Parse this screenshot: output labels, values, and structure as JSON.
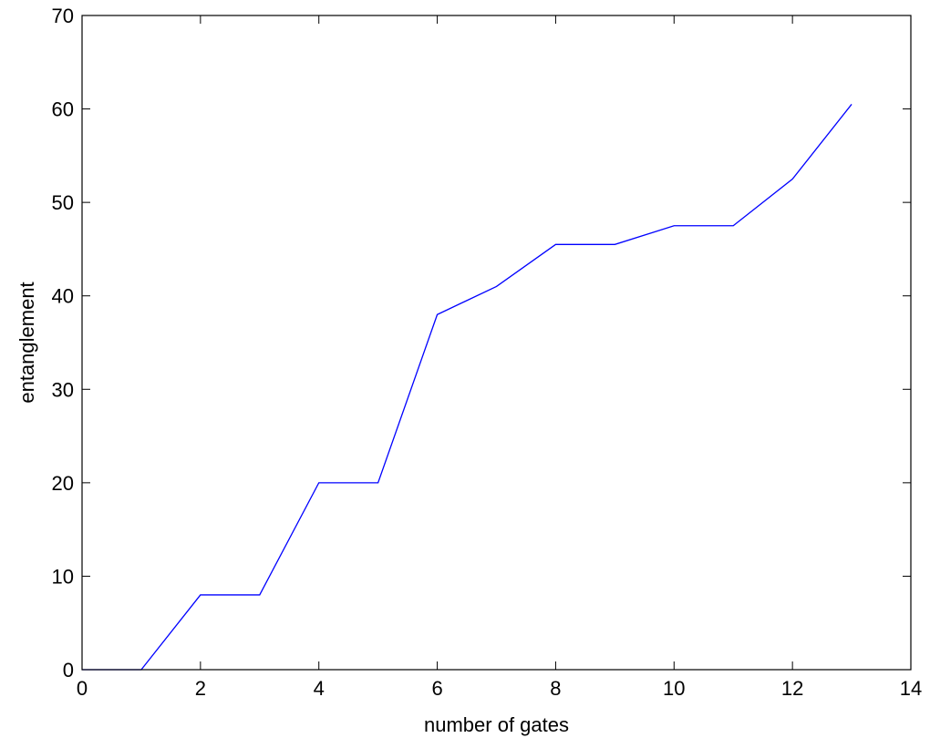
{
  "chart_data": {
    "type": "line",
    "title": "",
    "xlabel": "number of gates",
    "ylabel": "entanglement",
    "xlim": [
      0,
      14
    ],
    "ylim": [
      0,
      70
    ],
    "xticks": [
      0,
      2,
      4,
      6,
      8,
      10,
      12,
      14
    ],
    "yticks": [
      0,
      10,
      20,
      30,
      40,
      50,
      60,
      70
    ],
    "grid": false,
    "legend": "none",
    "series": [
      {
        "color": "#0000ff",
        "x": [
          0,
          1,
          2,
          3,
          4,
          5,
          6,
          7,
          8,
          9,
          10,
          11,
          12,
          13
        ],
        "y": [
          0,
          0,
          8,
          8,
          20,
          20,
          38,
          41,
          45.5,
          45.5,
          47.5,
          47.5,
          52.5,
          60.5
        ]
      }
    ]
  }
}
